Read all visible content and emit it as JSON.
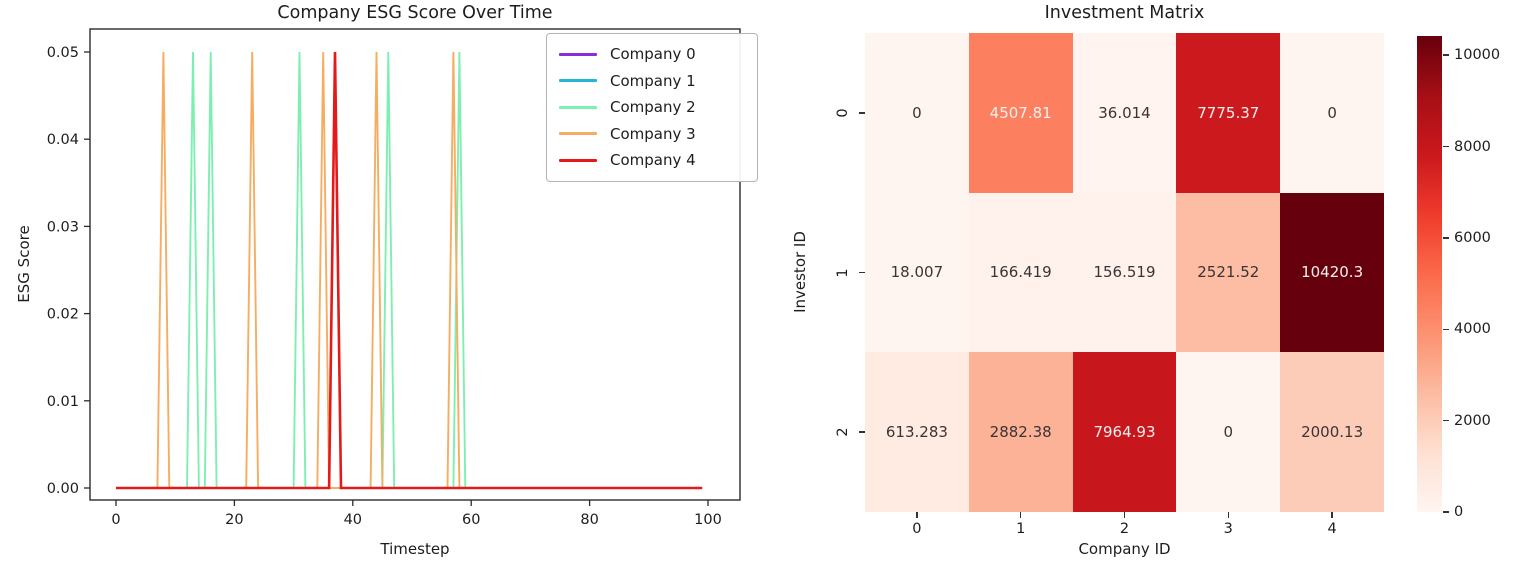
{
  "figure": {
    "background_color": "#ffffff",
    "text_color": "#1d1d1d"
  },
  "chart_data": [
    {
      "type": "line",
      "title": "Company ESG Score Over Time",
      "xlabel": "Timestep",
      "ylabel": "ESG Score",
      "x_range": [
        0,
        99
      ],
      "xticks": [
        0,
        20,
        40,
        60,
        80,
        100
      ],
      "xtick_labels": [
        "0",
        "20",
        "40",
        "60",
        "80",
        "100"
      ],
      "yticks": [
        0,
        0.01,
        0.02,
        0.03,
        0.04,
        0.05
      ],
      "ytick_labels": [
        "0.00",
        "0.01",
        "0.02",
        "0.03",
        "0.04",
        "0.05"
      ],
      "ylim": [
        -0.002,
        0.054
      ],
      "grid": false,
      "legend_position": "upper right",
      "baseline_value": 0,
      "spike_value": 0.05,
      "series": [
        {
          "name": "Company 0",
          "color": "#8a2be2",
          "spike_timesteps": []
        },
        {
          "name": "Company 1",
          "color": "#24b5d8",
          "spike_timesteps": []
        },
        {
          "name": "Company 2",
          "color": "#7df0b1",
          "spike_timesteps": [
            13,
            16,
            31,
            46,
            58
          ]
        },
        {
          "name": "Company 3",
          "color": "#f6ad62",
          "spike_timesteps": [
            8,
            23,
            35,
            44,
            57
          ]
        },
        {
          "name": "Company 4",
          "color": "#e41a1a",
          "spike_timesteps": [
            37
          ]
        }
      ]
    },
    {
      "type": "heatmap",
      "title": "Investment Matrix",
      "xlabel": "Company ID",
      "ylabel": "Investor ID",
      "x_ticklabels": [
        "0",
        "1",
        "2",
        "3",
        "4"
      ],
      "y_ticklabels": [
        "0",
        "1",
        "2"
      ],
      "rows": [
        {
          "investor_id": "0",
          "values": [
            0,
            4507.81,
            36.014,
            7775.37,
            0
          ],
          "labels": [
            "0",
            "4507.81",
            "36.014",
            "7775.37",
            "0"
          ]
        },
        {
          "investor_id": "1",
          "values": [
            18.007,
            166.419,
            156.519,
            2521.52,
            10420.3
          ],
          "labels": [
            "18.007",
            "166.419",
            "156.519",
            "2521.52",
            "10420.3"
          ]
        },
        {
          "investor_id": "2",
          "values": [
            613.283,
            2882.38,
            7964.93,
            0,
            2000.13
          ],
          "labels": [
            "613.283",
            "2882.38",
            "7964.93",
            "0",
            "2000.13"
          ]
        }
      ],
      "vmin": 0,
      "vmax": 10420.3,
      "colormap": "Reds",
      "colorbar_ticks": [
        0,
        2000,
        4000,
        6000,
        8000,
        10000
      ],
      "colorbar_tick_labels": [
        "0",
        "2000",
        "4000",
        "6000",
        "8000",
        "10000"
      ]
    }
  ]
}
